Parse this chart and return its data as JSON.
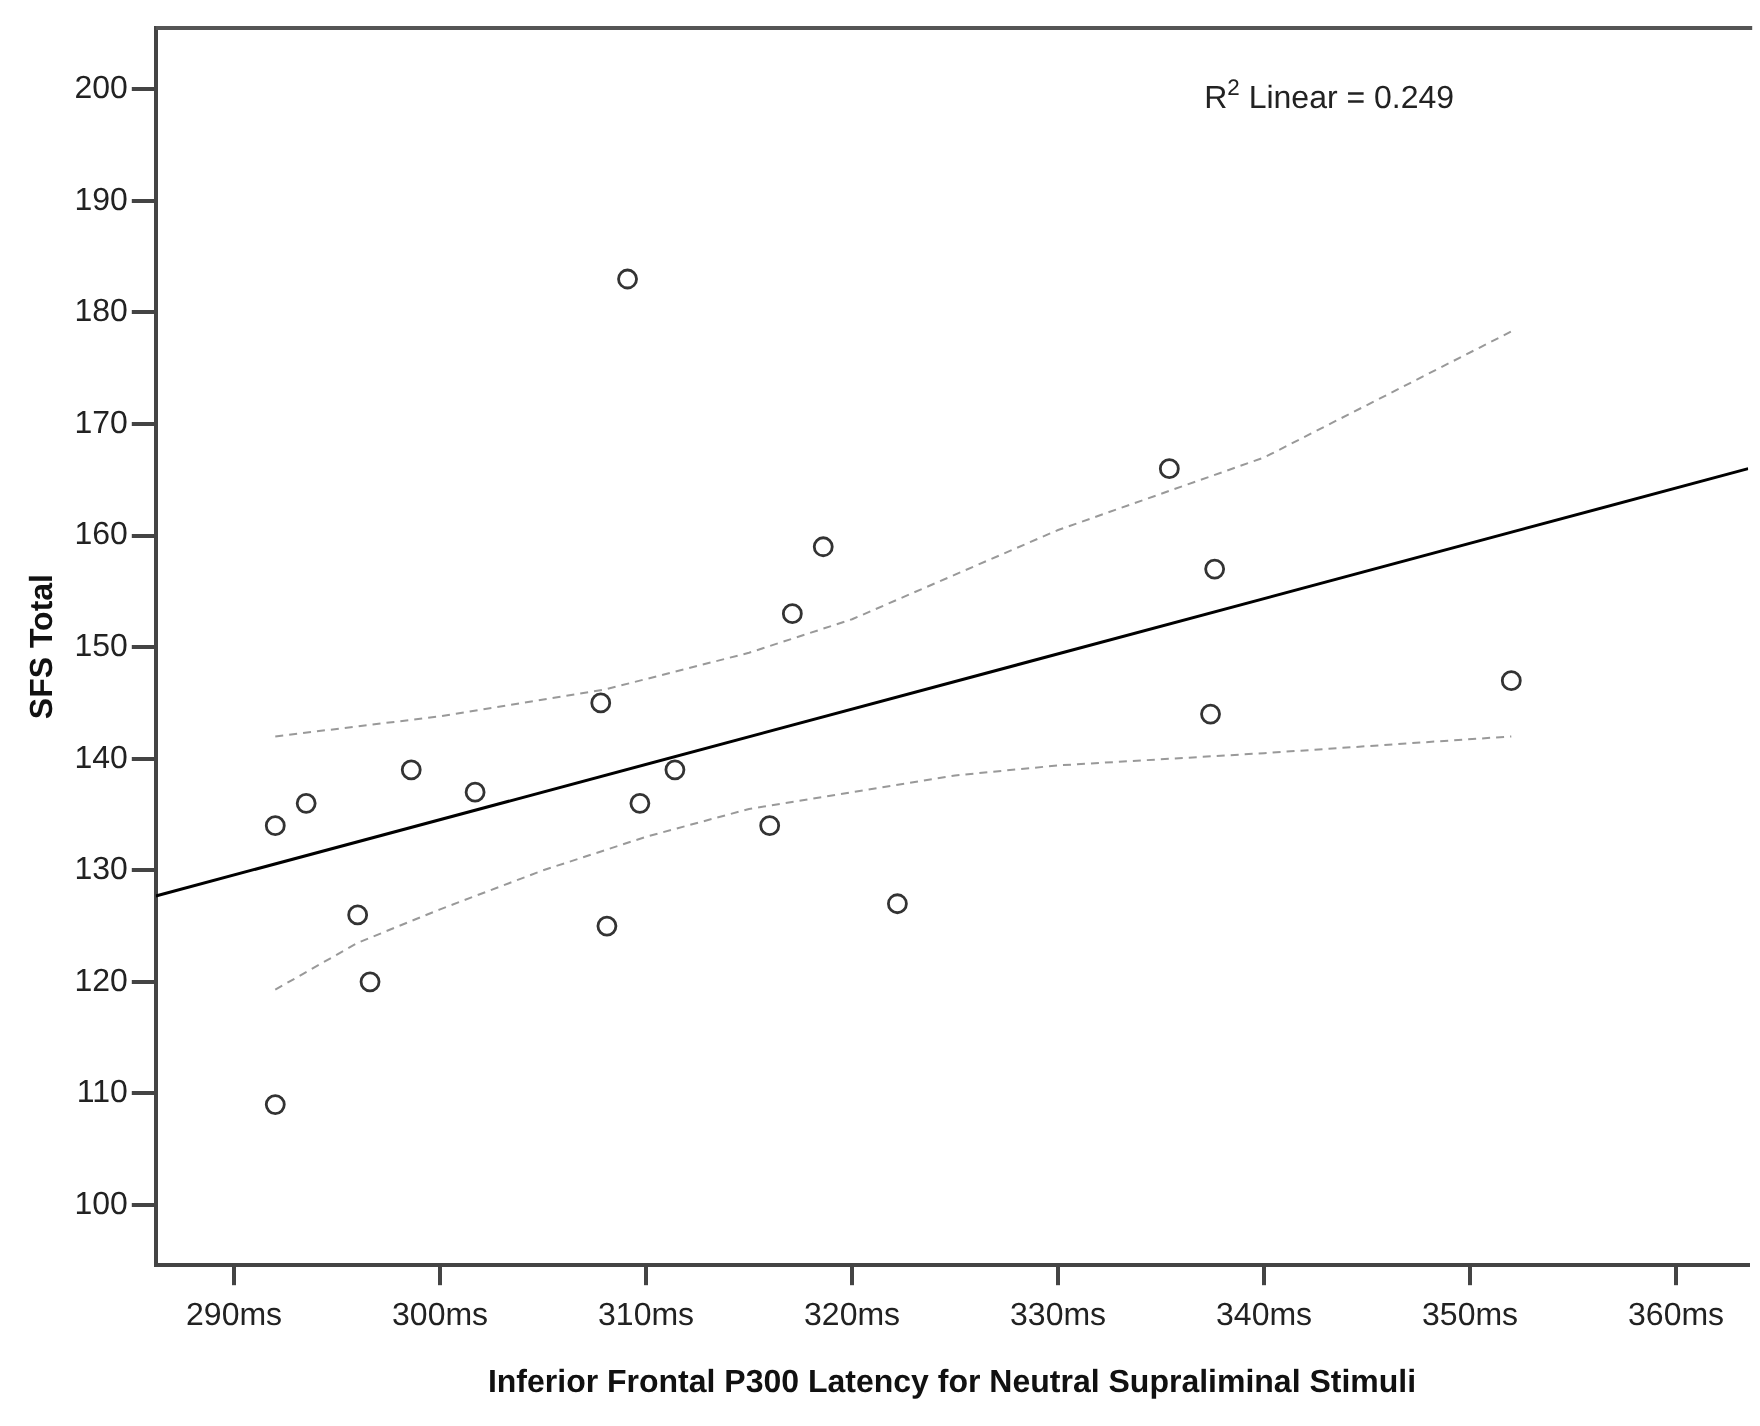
{
  "chart_data": {
    "type": "scatter",
    "xlabel": "Inferior Frontal P300 Latency for Neutral Supraliminal Stimuli",
    "ylabel": "SFS Total",
    "xlim": [
      286.2,
      363.5
    ],
    "ylim": [
      94.6,
      205.5
    ],
    "xticks": [
      {
        "value": 290,
        "label": "290ms"
      },
      {
        "value": 300,
        "label": "300ms"
      },
      {
        "value": 310,
        "label": "310ms"
      },
      {
        "value": 320,
        "label": "320ms"
      },
      {
        "value": 330,
        "label": "330ms"
      },
      {
        "value": 340,
        "label": "340ms"
      },
      {
        "value": 350,
        "label": "350ms"
      },
      {
        "value": 360,
        "label": "360ms"
      }
    ],
    "yticks": [
      100,
      110,
      120,
      130,
      140,
      150,
      160,
      170,
      180,
      190,
      200
    ],
    "grid": false,
    "legend": false,
    "annotations": [
      "R$^{2}$ Linear = 0.249"
    ],
    "series": [
      {
        "type": "scatter",
        "marker": "circle",
        "color": "#333333",
        "x": [
          292.0,
          292.0,
          293.5,
          296.0,
          296.6,
          298.6,
          301.7,
          309.1,
          307.8,
          308.1,
          309.7,
          311.4,
          316.0,
          317.1,
          318.6,
          322.2,
          335.4,
          337.6,
          337.4,
          352.0
        ],
        "values": [
          109,
          134,
          136,
          126,
          120,
          139,
          137,
          183,
          145,
          125,
          136,
          139,
          134,
          153,
          159,
          127,
          166,
          157,
          144,
          147
        ]
      },
      {
        "type": "line",
        "marker": "none",
        "color": "#000000",
        "line_style": "solid",
        "x": [
          286.2,
          363.5
        ],
        "values": [
          127.7,
          166
        ]
      },
      {
        "type": "line",
        "marker": "none",
        "color": "#999999",
        "line_style": "dashed",
        "x": [
          292,
          300,
          308,
          315,
          320,
          325,
          330,
          340,
          352
        ],
        "values": [
          142,
          143.8,
          146.2,
          149.5,
          152.5,
          156.5,
          160.5,
          167,
          178.3
        ]
      },
      {
        "type": "line",
        "marker": "none",
        "color": "#999999",
        "line_style": "dashed",
        "x": [
          292,
          296,
          300,
          305,
          310,
          315,
          320,
          325,
          330,
          340,
          352
        ],
        "values": [
          119.3,
          123.5,
          126.5,
          130,
          133,
          135.5,
          137,
          138.5,
          139.4,
          140.5,
          142
        ]
      }
    ]
  }
}
